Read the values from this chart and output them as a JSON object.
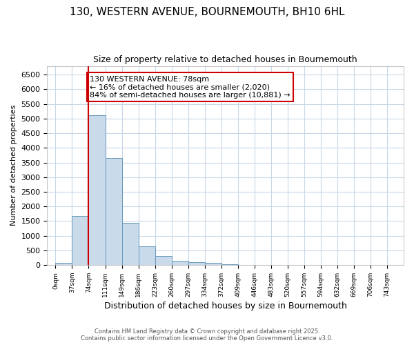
{
  "title_line1": "130, WESTERN AVENUE, BOURNEMOUTH, BH10 6HL",
  "title_line2": "Size of property relative to detached houses in Bournemouth",
  "xlabel": "Distribution of detached houses by size in Bournemouth",
  "ylabel": "Number of detached properties",
  "categories": [
    "0sqm",
    "37sqm",
    "74sqm",
    "111sqm",
    "149sqm",
    "186sqm",
    "223sqm",
    "260sqm",
    "297sqm",
    "334sqm",
    "372sqm",
    "409sqm",
    "446sqm",
    "483sqm",
    "520sqm",
    "557sqm",
    "594sqm",
    "632sqm",
    "669sqm",
    "706sqm",
    "743sqm"
  ],
  "values": [
    65,
    1670,
    5120,
    3650,
    1440,
    625,
    315,
    150,
    100,
    60,
    30,
    10,
    5,
    0,
    0,
    0,
    0,
    0,
    0,
    0,
    0
  ],
  "bar_color": "#c9daea",
  "bar_edge_color": "#6699bb",
  "vline_color": "#cc0000",
  "vline_pos": 2,
  "annotation_text": "130 WESTERN AVENUE: 78sqm\n← 16% of detached houses are smaller (2,020)\n84% of semi-detached houses are larger (10,881) →",
  "annotation_box_color": "#cc0000",
  "ylim": [
    0,
    6800
  ],
  "yticks": [
    0,
    500,
    1000,
    1500,
    2000,
    2500,
    3000,
    3500,
    4000,
    4500,
    5000,
    5500,
    6000,
    6500
  ],
  "footer_line1": "Contains HM Land Registry data © Crown copyright and database right 2025.",
  "footer_line2": "Contains public sector information licensed under the Open Government Licence v3.0.",
  "bg_color": "#ffffff",
  "grid_color": "#c8d8e8"
}
